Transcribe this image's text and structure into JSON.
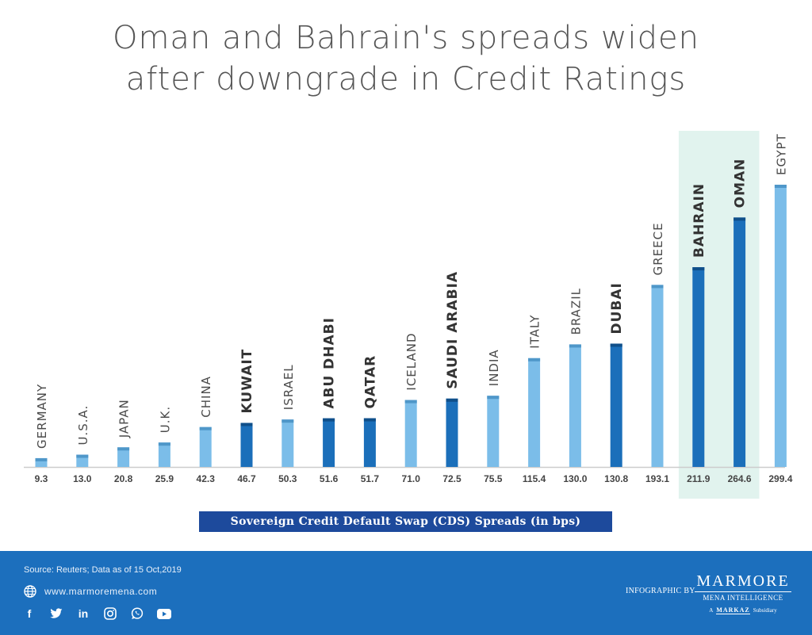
{
  "title_line1": "Oman and Bahrain's spreads widen",
  "title_line2": "after downgrade in Credit Ratings",
  "chart_data": {
    "type": "bar",
    "x_caption": "Sovereign Credit Default Swap (CDS) Spreads (in bps)",
    "categories": [
      "GERMANY",
      "U.S.A.",
      "JAPAN",
      "U.K.",
      "CHINA",
      "KUWAIT",
      "ISRAEL",
      "ABU DHABI",
      "QATAR",
      "ICELAND",
      "SAUDI ARABIA",
      "INDIA",
      "ITALY",
      "BRAZIL",
      "DUBAI",
      "GREECE",
      "BAHRAIN",
      "OMAN",
      "EGYPT"
    ],
    "values": [
      9.3,
      13.0,
      20.8,
      25.9,
      42.3,
      46.7,
      50.3,
      51.6,
      51.7,
      71.0,
      72.5,
      75.5,
      115.4,
      130.0,
      130.8,
      193.1,
      211.9,
      264.6,
      299.4
    ],
    "value_labels": [
      "9.3",
      "13.0",
      "20.8",
      "25.9",
      "42.3",
      "46.7",
      "50.3",
      "51.6",
      "51.7",
      "71.0",
      "72.5",
      "75.5",
      "115.4",
      "130.0",
      "130.8",
      "193.1",
      "211.9",
      "264.6",
      "299.4"
    ],
    "gcc_highlight": [
      false,
      false,
      false,
      false,
      false,
      true,
      false,
      true,
      true,
      false,
      true,
      false,
      false,
      false,
      true,
      false,
      true,
      true,
      false
    ],
    "highlighted_categories": [
      "BAHRAIN",
      "OMAN"
    ],
    "colors": {
      "gcc": "#1b6fba",
      "other": "#7bbde9",
      "highlight_bg": "#e1f3ee",
      "baseline": "#cccccc",
      "label": "#444444"
    }
  },
  "footer": {
    "source": "Source: Reuters; Data as of 15 Oct,2019",
    "website": "www.marmoremena.com",
    "credit": "INFOGRAPHIC BY",
    "logo_brand": "MARMORE",
    "logo_sub": "MENA INTELLIGENCE",
    "logo_prefix": "A",
    "logo_parent": "MARKAZ",
    "logo_suffix": "Subsidiary",
    "social_icons": [
      "facebook-icon",
      "twitter-icon",
      "linkedin-icon",
      "instagram-icon",
      "whatsapp-icon",
      "youtube-icon"
    ]
  }
}
